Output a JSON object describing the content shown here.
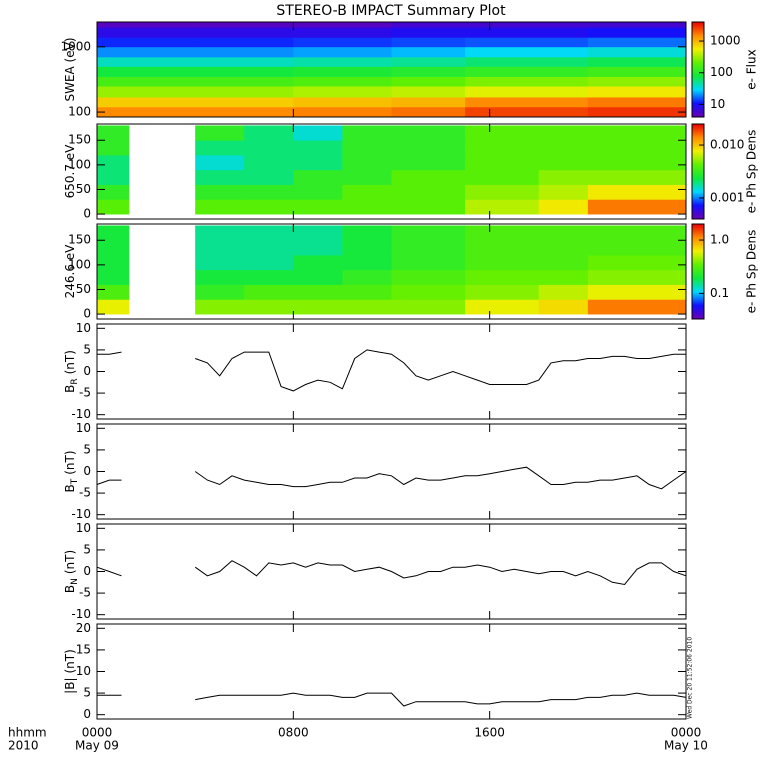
{
  "title": "STEREO-B IMPACT Summary Plot",
  "corner_labels": [
    "hhmm",
    "2010"
  ],
  "timestamp": "Wed Dec 20 11:52:06 2010",
  "xlim": [
    0,
    24
  ],
  "xticks": [
    {
      "value": 0,
      "label": "0000"
    },
    {
      "value": 8,
      "label": "0800"
    },
    {
      "value": 16,
      "label": "1600"
    },
    {
      "value": 24,
      "label": "0000"
    }
  ],
  "xtick_dates": [
    "May 09",
    null,
    null,
    "May 10"
  ],
  "colormap": [
    "#6a00b0",
    "#1010ff",
    "#00d8ff",
    "#10e840",
    "#60f000",
    "#f0f000",
    "#ff8c00",
    "#e80000"
  ],
  "chart_data": [
    {
      "type": "heatmap",
      "ylabel": "SWEA (eV)",
      "ylog": true,
      "ylim": [
        84,
        2400
      ],
      "yticks": [
        100,
        1000
      ],
      "clabel": "e- Flux",
      "clim": [
        4,
        4000
      ],
      "cticks": [
        10,
        100,
        1000
      ],
      "x_edges": [
        0,
        4,
        8,
        12,
        15,
        20,
        24
      ],
      "y_edges": [
        84,
        120,
        170,
        250,
        350,
        500,
        700,
        1000,
        1400,
        2000,
        2400
      ],
      "z": [
        [
          1500,
          1500,
          1600,
          1800,
          2500,
          2800
        ],
        [
          800,
          800,
          900,
          1000,
          1500,
          1700
        ],
        [
          300,
          300,
          350,
          400,
          500,
          600
        ],
        [
          150,
          150,
          170,
          200,
          250,
          280
        ],
        [
          80,
          80,
          90,
          100,
          120,
          140
        ],
        [
          40,
          40,
          45,
          50,
          60,
          70
        ],
        [
          20,
          20,
          22,
          25,
          30,
          35
        ],
        [
          12,
          12,
          13,
          14,
          15,
          17
        ],
        [
          8,
          8,
          8,
          9,
          9,
          10
        ],
        [
          5,
          5,
          5,
          6,
          6,
          6
        ]
      ]
    },
    {
      "type": "heatmap",
      "ylabel": "650.7 eV",
      "ylim": [
        -10,
        183
      ],
      "yticks": [
        0,
        50,
        100,
        150
      ],
      "clabel": "e- Ph Sp Dens",
      "clim": [
        0.0004,
        0.025
      ],
      "cticks": [
        0.001,
        {
          "value": 0.01,
          "label": "0.010"
        }
      ],
      "x_edges": [
        0,
        1.3,
        4,
        6,
        8,
        10,
        12,
        15,
        18,
        20,
        24
      ],
      "y_edges": [
        0,
        30,
        60,
        90,
        120,
        150,
        180
      ],
      "z": [
        [
          0.004,
          null,
          0.004,
          0.004,
          0.004,
          0.004,
          0.004,
          0.006,
          0.008,
          0.015
        ],
        [
          0.003,
          null,
          0.003,
          0.003,
          0.003,
          0.004,
          0.004,
          0.005,
          0.006,
          0.008
        ],
        [
          0.002,
          null,
          0.002,
          0.002,
          0.003,
          0.003,
          0.004,
          0.004,
          0.005,
          0.005
        ],
        [
          0.002,
          null,
          0.0015,
          0.002,
          0.002,
          0.003,
          0.003,
          0.004,
          0.004,
          0.004
        ],
        [
          0.003,
          null,
          0.002,
          0.002,
          0.002,
          0.003,
          0.003,
          0.004,
          0.004,
          0.004
        ],
        [
          0.003,
          null,
          0.003,
          0.002,
          0.0015,
          0.003,
          0.003,
          0.004,
          0.004,
          0.004
        ]
      ]
    },
    {
      "type": "heatmap",
      "ylabel": "246.6 eV",
      "ylim": [
        -10,
        183
      ],
      "yticks": [
        0,
        50,
        100,
        150
      ],
      "clabel": "e- Ph Sp Dens",
      "clim": [
        0.033,
        2.0
      ],
      "cticks": [
        0.1,
        {
          "value": 1,
          "label": "1.0"
        }
      ],
      "x_edges": [
        0,
        1.3,
        4,
        6,
        8,
        10,
        12,
        15,
        18,
        20,
        24
      ],
      "y_edges": [
        0,
        30,
        60,
        90,
        120,
        150,
        180
      ],
      "z": [
        [
          0.6,
          null,
          0.4,
          0.4,
          0.4,
          0.4,
          0.4,
          0.6,
          0.7,
          1.2
        ],
        [
          0.3,
          null,
          0.25,
          0.3,
          0.3,
          0.3,
          0.35,
          0.4,
          0.5,
          0.6
        ],
        [
          0.2,
          null,
          0.2,
          0.2,
          0.2,
          0.25,
          0.3,
          0.35,
          0.35,
          0.4
        ],
        [
          0.2,
          null,
          0.15,
          0.15,
          0.2,
          0.2,
          0.25,
          0.3,
          0.3,
          0.35
        ],
        [
          0.2,
          null,
          0.15,
          0.15,
          0.15,
          0.2,
          0.25,
          0.3,
          0.3,
          0.3
        ],
        [
          0.2,
          null,
          0.15,
          0.15,
          0.15,
          0.2,
          0.25,
          0.3,
          0.3,
          0.3
        ]
      ]
    },
    {
      "type": "line",
      "ylabel": "B",
      "ylabel_sub": "R",
      "ylabel_unit": "(nT)",
      "ylim": [
        -11,
        11
      ],
      "yticks": [
        -10,
        -5,
        0,
        5,
        10
      ],
      "color": "#000000",
      "x": [
        0,
        0.5,
        1,
        1.5,
        2,
        2.5,
        3,
        3.5,
        4,
        4.5,
        5,
        5.5,
        6,
        6.5,
        7,
        7.5,
        8,
        8.5,
        9,
        9.5,
        10,
        10.5,
        11,
        11.5,
        12,
        12.5,
        13,
        13.5,
        14,
        14.5,
        15,
        15.5,
        16,
        16.5,
        17,
        17.5,
        18,
        18.5,
        19,
        19.5,
        20,
        20.5,
        21,
        21.5,
        22,
        22.5,
        23,
        23.5,
        24
      ],
      "values": [
        4,
        4,
        4.5,
        null,
        null,
        null,
        null,
        null,
        3,
        2,
        -1,
        3,
        4.5,
        4.5,
        4.5,
        -3.5,
        -4.5,
        -3,
        -2,
        -2.5,
        -4,
        3,
        5,
        4.5,
        4,
        2,
        -1,
        -2,
        -1,
        0,
        -1,
        -2,
        -3,
        -3,
        -3,
        -3,
        -2,
        2,
        2.5,
        2.5,
        3,
        3,
        3.5,
        3.5,
        3,
        3,
        3.5,
        4,
        4
      ]
    },
    {
      "type": "line",
      "ylabel": "B",
      "ylabel_sub": "T",
      "ylabel_unit": "(nT)",
      "ylim": [
        -11,
        11
      ],
      "yticks": [
        -10,
        -5,
        0,
        5,
        10
      ],
      "color": "#000000",
      "x": [
        0,
        0.5,
        1,
        1.5,
        2,
        2.5,
        3,
        3.5,
        4,
        4.5,
        5,
        5.5,
        6,
        6.5,
        7,
        7.5,
        8,
        8.5,
        9,
        9.5,
        10,
        10.5,
        11,
        11.5,
        12,
        12.5,
        13,
        13.5,
        14,
        14.5,
        15,
        15.5,
        16,
        16.5,
        17,
        17.5,
        18,
        18.5,
        19,
        19.5,
        20,
        20.5,
        21,
        21.5,
        22,
        22.5,
        23,
        23.5,
        24
      ],
      "values": [
        -3,
        -2,
        -2,
        null,
        null,
        null,
        null,
        null,
        0,
        -2,
        -3,
        -1,
        -2,
        -2.5,
        -3,
        -3,
        -3.5,
        -3.5,
        -3,
        -2.5,
        -2.5,
        -1.5,
        -1.5,
        -0.5,
        -1,
        -3,
        -1.5,
        -2,
        -2,
        -1.5,
        -1,
        -1,
        -0.5,
        0,
        0.5,
        1,
        -1,
        -3,
        -3,
        -2.5,
        -2.5,
        -2,
        -2,
        -1.5,
        -1,
        -3,
        -4,
        -2,
        0
      ]
    },
    {
      "type": "line",
      "ylabel": "B",
      "ylabel_sub": "N",
      "ylabel_unit": "(nT)",
      "ylim": [
        -11,
        11
      ],
      "yticks": [
        -10,
        -5,
        0,
        5,
        10
      ],
      "color": "#000000",
      "x": [
        0,
        0.5,
        1,
        1.5,
        2,
        2.5,
        3,
        3.5,
        4,
        4.5,
        5,
        5.5,
        6,
        6.5,
        7,
        7.5,
        8,
        8.5,
        9,
        9.5,
        10,
        10.5,
        11,
        11.5,
        12,
        12.5,
        13,
        13.5,
        14,
        14.5,
        15,
        15.5,
        16,
        16.5,
        17,
        17.5,
        18,
        18.5,
        19,
        19.5,
        20,
        20.5,
        21,
        21.5,
        22,
        22.5,
        23,
        23.5,
        24
      ],
      "values": [
        1,
        0,
        -1,
        null,
        null,
        null,
        null,
        null,
        1,
        -1,
        0,
        2.5,
        1,
        -1,
        2,
        1.5,
        2,
        1,
        2,
        1.5,
        1.5,
        0,
        0.5,
        1,
        0,
        -1.5,
        -1,
        0,
        0,
        1,
        1,
        1.5,
        1,
        0,
        0.5,
        0,
        -0.5,
        0,
        0,
        -1,
        0,
        -1,
        -2.5,
        -3,
        0.5,
        2,
        2,
        0,
        -1
      ]
    },
    {
      "type": "line",
      "ylabel": "|B|",
      "ylabel_unit": "(nT)",
      "ylim": [
        -1,
        21
      ],
      "yticks": [
        0,
        5,
        10,
        15,
        20
      ],
      "color": "#000000",
      "x": [
        0,
        0.5,
        1,
        1.5,
        2,
        2.5,
        3,
        3.5,
        4,
        4.5,
        5,
        5.5,
        6,
        6.5,
        7,
        7.5,
        8,
        8.5,
        9,
        9.5,
        10,
        10.5,
        11,
        11.5,
        12,
        12.5,
        13,
        13.5,
        14,
        14.5,
        15,
        15.5,
        16,
        16.5,
        17,
        17.5,
        18,
        18.5,
        19,
        19.5,
        20,
        20.5,
        21,
        21.5,
        22,
        22.5,
        23,
        23.5,
        24
      ],
      "values": [
        4.5,
        4.5,
        4.5,
        null,
        null,
        null,
        null,
        null,
        3.5,
        4,
        4.5,
        4.5,
        4.5,
        4.5,
        4.5,
        4.5,
        5,
        4.5,
        4.5,
        4.5,
        4,
        4,
        5,
        5,
        5,
        2,
        3,
        3,
        3,
        3,
        3,
        2.5,
        2.5,
        3,
        3,
        3,
        3,
        3.5,
        3.5,
        3.5,
        4,
        4,
        4.5,
        4.5,
        5,
        4.5,
        4.5,
        4.5,
        4
      ]
    }
  ]
}
